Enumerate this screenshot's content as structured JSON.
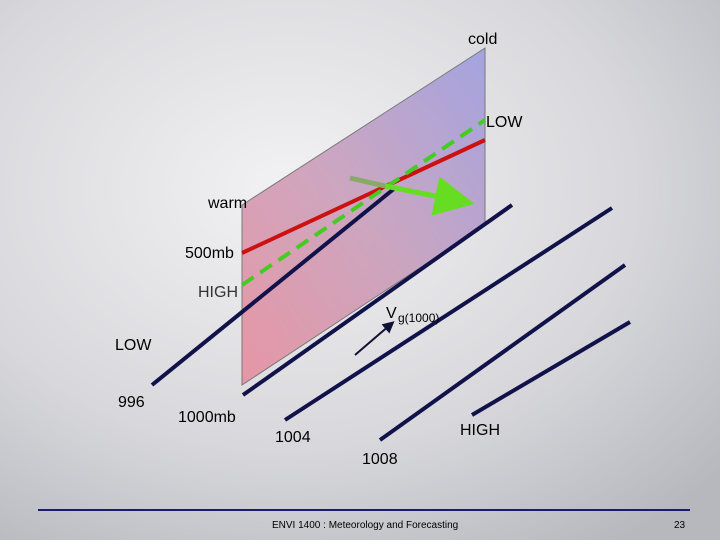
{
  "labels": {
    "cold": "cold",
    "low_top": "LOW",
    "warm": "warm",
    "level_500": "500mb",
    "high_left": "HIGH",
    "v": "V",
    "v_sub": "g(1000)",
    "low_left": "LOW",
    "isobar_996": "996",
    "level_1000": "1000mb",
    "isobar_1004": "1004",
    "high_bottom": "HIGH",
    "isobar_1008": "1008"
  },
  "footer": {
    "course": "ENVI 1400 : Meteorology and Forecasting",
    "page": "23"
  }
}
